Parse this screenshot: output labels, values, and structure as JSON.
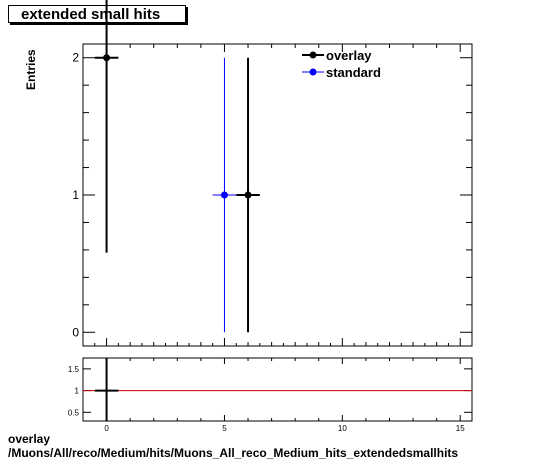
{
  "title": "extended small hits",
  "ylabel": "Entries",
  "footer": {
    "line1": "overlay",
    "line2": "/Muons/All/reco/Medium/hits/Muons_All_reco_Medium_hits_extendedsmallhits"
  },
  "colors": {
    "overlay": "#000000",
    "standard": "#0000ff",
    "ratio_line": "#cc0000"
  },
  "chart_data": [
    {
      "type": "scatter",
      "title": "extended small hits",
      "ylabel": "Entries",
      "xlim": [
        -1,
        15.5
      ],
      "ylim": [
        -0.1,
        2.1
      ],
      "x_ticks": [
        0,
        5,
        10,
        15
      ],
      "y_ticks": [
        0,
        1,
        2
      ],
      "legend": {
        "placement": "top-right"
      },
      "series": [
        {
          "name": "overlay",
          "color": "#000000",
          "points": [
            {
              "x": 0,
              "y": 2,
              "xerr": 0.5,
              "yerr_low": 1.42,
              "yerr_high": 1.42
            },
            {
              "x": 6,
              "y": 1,
              "xerr": 0.5,
              "yerr_low": 1,
              "yerr_high": 1
            }
          ]
        },
        {
          "name": "standard",
          "color": "#0000ff",
          "points": [
            {
              "x": 5,
              "y": 1,
              "xerr": 0.5,
              "yerr_low": 1,
              "yerr_high": 1
            }
          ]
        }
      ]
    },
    {
      "type": "line",
      "xlim": [
        -1,
        15.5
      ],
      "ylim": [
        0.3,
        1.75
      ],
      "x_ticks": [
        0,
        5,
        10,
        15
      ],
      "y_ticks": [
        0.5,
        1,
        1.5
      ],
      "reference_line": 1,
      "points": [
        {
          "x": 0,
          "y": 1,
          "xerr": 0.5
        }
      ]
    }
  ]
}
